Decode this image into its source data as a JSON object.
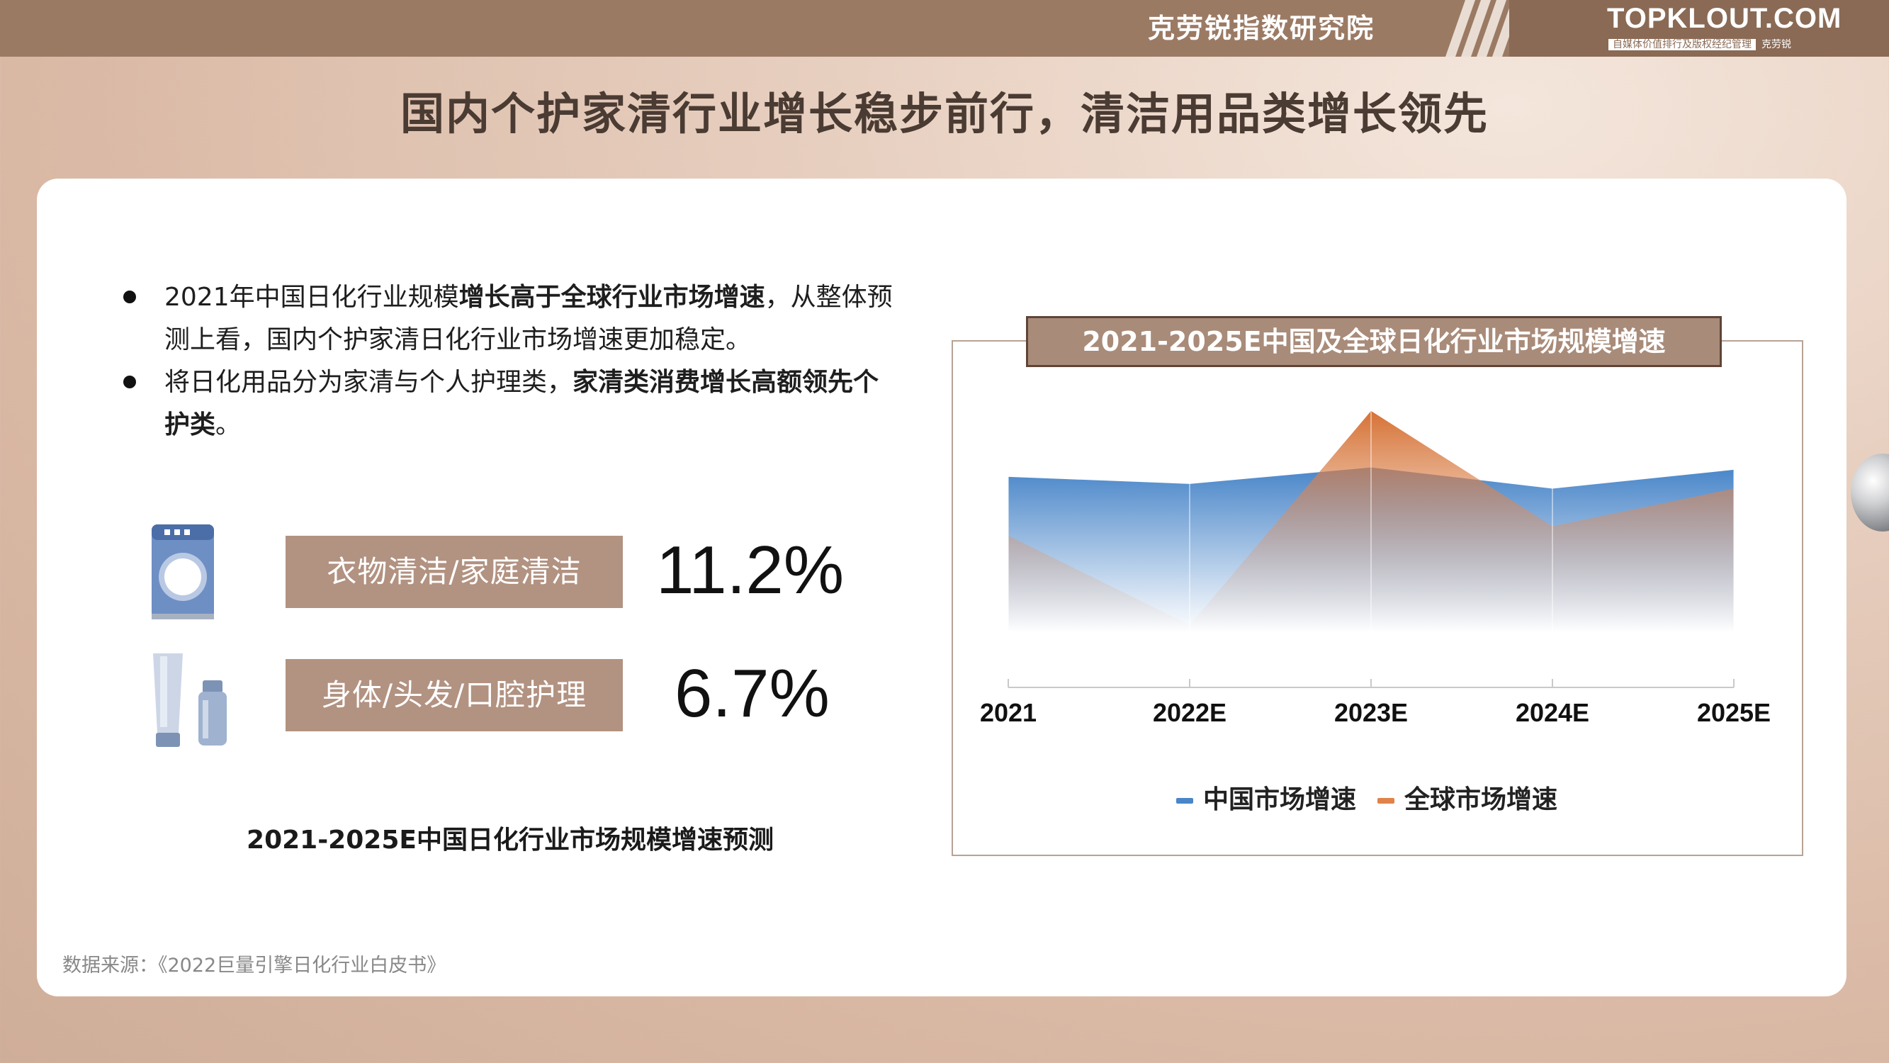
{
  "header": {
    "org_name": "克劳锐指数研究院",
    "logo_text": "TOPKLOUT.COM",
    "logo_tagline": "自媒体价值排行及版权经纪管理",
    "logo_brand": "克劳锐"
  },
  "title": "国内个护家清行业增长稳步前行，清洁用品类增长领先",
  "bullets": [
    {
      "pre": "2021年中国日化行业规模",
      "bold": "增长高于全球行业市场增速",
      "post": "，从整体预测上看，国内个护家清日化行业市场增速更加稳定。"
    },
    {
      "pre": "将日化用品分为家清与个人护理类，",
      "bold": "家清类消费增长高额领先个护类",
      "post": "。"
    }
  ],
  "metrics": [
    {
      "icon": "washing-machine-icon",
      "label": "衣物清洁/家庭清洁",
      "value": "11.2%"
    },
    {
      "icon": "personal-care-bottles-icon",
      "label": "身体/头发/口腔护理",
      "value": "6.7%"
    }
  ],
  "left_caption": "2021-2025E中国日化行业市场规模增速预测",
  "source": "数据来源：《2022巨量引擎日化行业白皮书》",
  "colors": {
    "china": "#4a86c8",
    "global": "#e0834a",
    "label_bg": "#b29281",
    "header_bg": "#9b7a64"
  },
  "chart_data": {
    "type": "area",
    "title": "2021-2025E中国及全球日化行业市场规模增速",
    "categories": [
      "2021",
      "2022E",
      "2023E",
      "2024E",
      "2025E"
    ],
    "series": [
      {
        "name": "中国市场增速",
        "values": [
          6.6,
          6.3,
          7.0,
          6.1,
          6.9
        ]
      },
      {
        "name": "全球市场增速",
        "values": [
          4.1,
          0.3,
          9.4,
          4.5,
          6.1
        ]
      }
    ],
    "ylim": [
      0,
      10
    ],
    "grid": false,
    "legend": "bottom"
  }
}
